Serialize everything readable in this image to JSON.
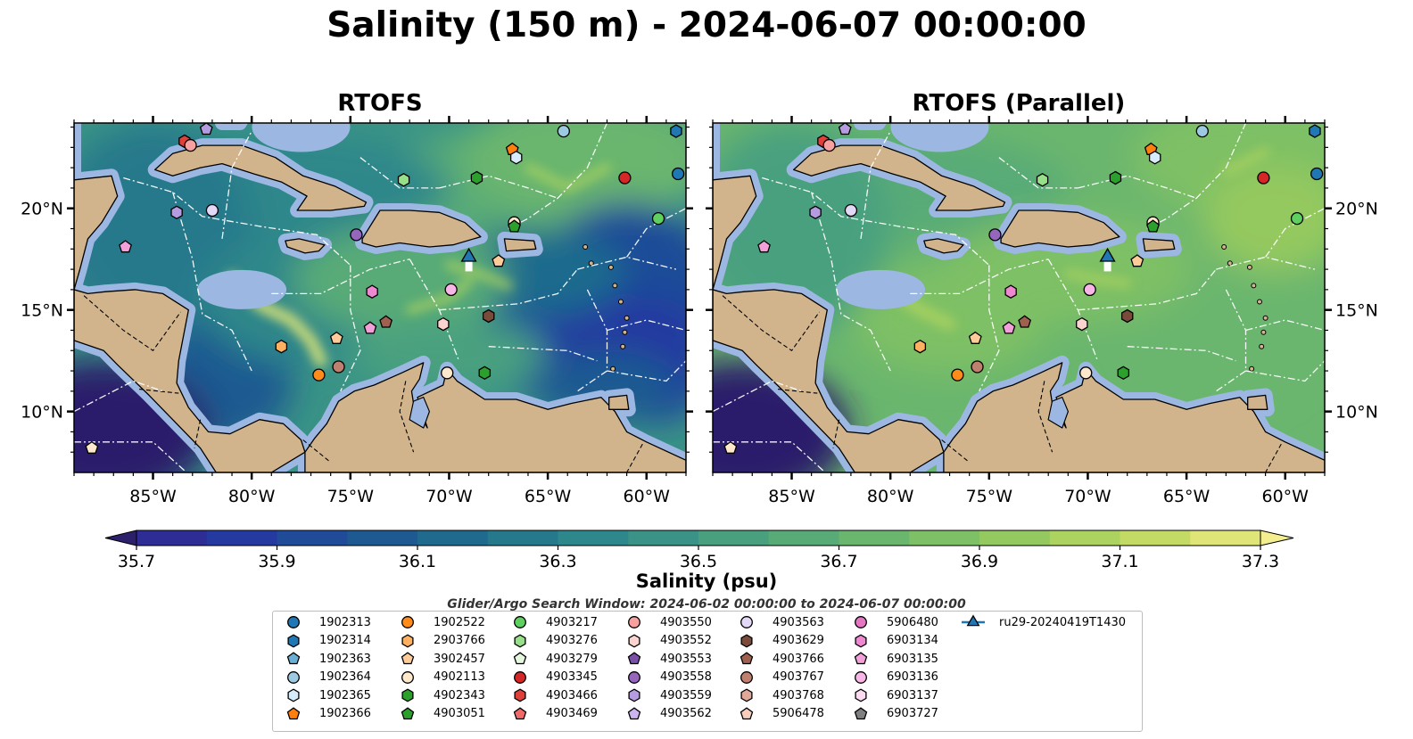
{
  "title": "Salinity (150 m) - 2024-06-07 00:00:00",
  "panels": [
    {
      "title": "RTOFS",
      "variant": "original"
    },
    {
      "title": "RTOFS (Parallel)",
      "variant": "parallel"
    }
  ],
  "map": {
    "lon_range": [
      -89,
      -58
    ],
    "lat_range": [
      7,
      24.2
    ],
    "lon_ticks": [
      "85°W",
      "80°W",
      "75°W",
      "70°W",
      "65°W",
      "60°W"
    ],
    "lat_ticks": [
      "20°N",
      "15°N",
      "10°N"
    ],
    "land_color": "#d2b48c",
    "shelf_color": "#9cb8e2",
    "eez_line_color": "#ffffff",
    "border_line_color": "#000000"
  },
  "colorbar": {
    "label": "Salinity (psu)",
    "min": 35.6,
    "max": 37.4,
    "step": 0.1,
    "ticks": [
      "35.7",
      "35.9",
      "36.1",
      "36.3",
      "36.5",
      "36.7",
      "36.9",
      "37.1",
      "37.3"
    ],
    "colors": [
      "#2c1f6b",
      "#2e2d96",
      "#243aa0",
      "#1f4b98",
      "#1e5a91",
      "#1f6a8d",
      "#25798b",
      "#2e878a",
      "#3a9386",
      "#48a07f",
      "#58ab77",
      "#6ab66e",
      "#7ec065",
      "#94c95f",
      "#acd25f",
      "#c3db65",
      "#dfe677",
      "#f4ee8e"
    ]
  },
  "search_window": "Glider/Argo Search Window: 2024-06-02 00:00:00 to 2024-06-07 00:00:00",
  "legend": [
    {
      "label": "1902313",
      "marker": "circle",
      "color": "#1f77b4"
    },
    {
      "label": "1902314",
      "marker": "hexagon",
      "color": "#1f77b4"
    },
    {
      "label": "1902363",
      "marker": "pentagon",
      "color": "#6aaed6"
    },
    {
      "label": "1902364",
      "marker": "circle",
      "color": "#9ecae1"
    },
    {
      "label": "1902365",
      "marker": "hexagon",
      "color": "#d6ecfa"
    },
    {
      "label": "1902366",
      "marker": "pentagon",
      "color": "#ff7f0e"
    },
    {
      "label": "1902522",
      "marker": "circle",
      "color": "#ff8c1a"
    },
    {
      "label": "2903766",
      "marker": "hexagon",
      "color": "#ffb060"
    },
    {
      "label": "3902457",
      "marker": "pentagon",
      "color": "#ffcc99"
    },
    {
      "label": "4902113",
      "marker": "circle",
      "color": "#ffe8cc"
    },
    {
      "label": "4902343",
      "marker": "hexagon",
      "color": "#2ca02c"
    },
    {
      "label": "4903051",
      "marker": "pentagon",
      "color": "#2ca02c"
    },
    {
      "label": "4903217",
      "marker": "circle",
      "color": "#5fcf5f"
    },
    {
      "label": "4903276",
      "marker": "hexagon",
      "color": "#98df8a"
    },
    {
      "label": "4903279",
      "marker": "pentagon",
      "color": "#e5f7df"
    },
    {
      "label": "4903345",
      "marker": "circle",
      "color": "#d62728"
    },
    {
      "label": "4903466",
      "marker": "hexagon",
      "color": "#e0403a"
    },
    {
      "label": "4903469",
      "marker": "pentagon",
      "color": "#f06a6a"
    },
    {
      "label": "4903550",
      "marker": "circle",
      "color": "#f7a0a0"
    },
    {
      "label": "4903552",
      "marker": "hexagon",
      "color": "#fbd4cf"
    },
    {
      "label": "4903553",
      "marker": "pentagon",
      "color": "#7b4fa8"
    },
    {
      "label": "4903558",
      "marker": "circle",
      "color": "#9467bd"
    },
    {
      "label": "4903559",
      "marker": "hexagon",
      "color": "#b59be0"
    },
    {
      "label": "4903562",
      "marker": "pentagon",
      "color": "#cbb5ee"
    },
    {
      "label": "4903563",
      "marker": "circle",
      "color": "#e4d8f7"
    },
    {
      "label": "4903629",
      "marker": "hexagon",
      "color": "#7a4a3a"
    },
    {
      "label": "4903766",
      "marker": "pentagon",
      "color": "#a06050"
    },
    {
      "label": "4903767",
      "marker": "circle",
      "color": "#c08070"
    },
    {
      "label": "4903768",
      "marker": "hexagon",
      "color": "#e0a898"
    },
    {
      "label": "5906478",
      "marker": "pentagon",
      "color": "#f7cdbd"
    },
    {
      "label": "5906480",
      "marker": "circle",
      "color": "#e377c2"
    },
    {
      "label": "6903134",
      "marker": "hexagon",
      "color": "#ee88d0"
    },
    {
      "label": "6903135",
      "marker": "pentagon",
      "color": "#f2a0da"
    },
    {
      "label": "6903136",
      "marker": "circle",
      "color": "#f7b6e6"
    },
    {
      "label": "6903137",
      "marker": "hexagon",
      "color": "#fbdaf2"
    },
    {
      "label": "6903727",
      "marker": "pentagon",
      "color": "#7f7f7f"
    },
    {
      "label": "ru29-20240419T1430",
      "marker": "triangle",
      "color": "#1f77b4"
    }
  ],
  "floats": [
    {
      "lon": -82.3,
      "lat": 23.9,
      "marker": "pentagon",
      "color": "#b59be0"
    },
    {
      "lon": -83.4,
      "lat": 23.3,
      "marker": "hexagon",
      "color": "#e0403a"
    },
    {
      "lon": -83.1,
      "lat": 23.1,
      "marker": "circle",
      "color": "#f7a0a0"
    },
    {
      "lon": -83.8,
      "lat": 19.8,
      "marker": "hexagon",
      "color": "#b59be0"
    },
    {
      "lon": -82.0,
      "lat": 19.9,
      "marker": "circle",
      "color": "#e4d8f7"
    },
    {
      "lon": -86.4,
      "lat": 18.1,
      "marker": "pentagon",
      "color": "#f2a0da"
    },
    {
      "lon": -72.3,
      "lat": 21.4,
      "marker": "hexagon",
      "color": "#98df8a"
    },
    {
      "lon": -74.7,
      "lat": 18.7,
      "marker": "circle",
      "color": "#9467bd"
    },
    {
      "lon": -73.9,
      "lat": 15.9,
      "marker": "hexagon",
      "color": "#ee88d0"
    },
    {
      "lon": -78.5,
      "lat": 13.2,
      "marker": "hexagon",
      "color": "#ffb060"
    },
    {
      "lon": -75.7,
      "lat": 13.6,
      "marker": "pentagon",
      "color": "#ffcc99"
    },
    {
      "lon": -74.0,
      "lat": 14.1,
      "marker": "pentagon",
      "color": "#f2a0da"
    },
    {
      "lon": -73.2,
      "lat": 14.4,
      "marker": "pentagon",
      "color": "#a06050"
    },
    {
      "lon": -70.3,
      "lat": 14.3,
      "marker": "hexagon",
      "color": "#fbd4cf"
    },
    {
      "lon": -76.6,
      "lat": 11.8,
      "marker": "circle",
      "color": "#ff8c1a"
    },
    {
      "lon": -75.6,
      "lat": 12.2,
      "marker": "circle",
      "color": "#c08070"
    },
    {
      "lon": -70.1,
      "lat": 11.9,
      "marker": "circle",
      "color": "#ffe8cc"
    },
    {
      "lon": -68.2,
      "lat": 11.9,
      "marker": "hexagon",
      "color": "#2ca02c"
    },
    {
      "lon": -69.9,
      "lat": 16.0,
      "marker": "circle",
      "color": "#f7b6e6"
    },
    {
      "lon": -68.0,
      "lat": 14.7,
      "marker": "hexagon",
      "color": "#7a4a3a"
    },
    {
      "lon": -67.5,
      "lat": 17.4,
      "marker": "pentagon",
      "color": "#ffcc99"
    },
    {
      "lon": -66.8,
      "lat": 22.9,
      "marker": "pentagon",
      "color": "#ff7f0e"
    },
    {
      "lon": -66.6,
      "lat": 22.5,
      "marker": "hexagon",
      "color": "#d6ecfa"
    },
    {
      "lon": -66.7,
      "lat": 19.3,
      "marker": "circle",
      "color": "#ffe8cc"
    },
    {
      "lon": -66.7,
      "lat": 19.1,
      "marker": "pentagon",
      "color": "#2ca02c"
    },
    {
      "lon": -68.6,
      "lat": 21.5,
      "marker": "hexagon",
      "color": "#2ca02c"
    },
    {
      "lon": -64.2,
      "lat": 23.8,
      "marker": "circle",
      "color": "#9ecae1"
    },
    {
      "lon": -58.5,
      "lat": 23.8,
      "marker": "hexagon",
      "color": "#1f77b4"
    },
    {
      "lon": -61.1,
      "lat": 21.5,
      "marker": "circle",
      "color": "#d62728"
    },
    {
      "lon": -58.4,
      "lat": 21.7,
      "marker": "circle",
      "color": "#1f77b4"
    },
    {
      "lon": -59.4,
      "lat": 19.5,
      "marker": "circle",
      "color": "#5fcf5f"
    },
    {
      "lon": -88.1,
      "lat": 8.2,
      "marker": "pentagon",
      "color": "#ffe8cc"
    }
  ],
  "glider": {
    "lon": -69.0,
    "lat": 17.6,
    "marker": "triangle",
    "color": "#1f77b4"
  }
}
